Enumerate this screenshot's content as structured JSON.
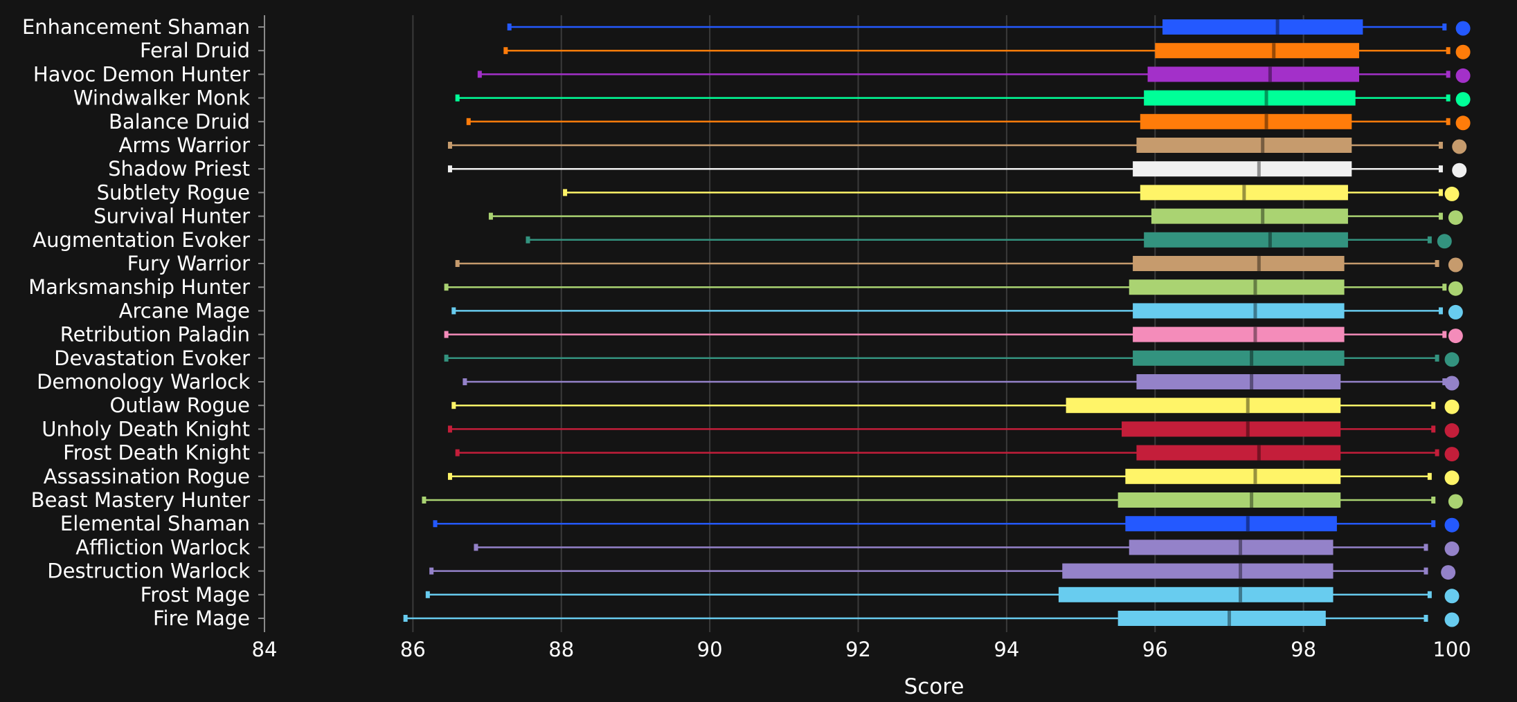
{
  "chart_data": {
    "type": "box",
    "title": "",
    "xlabel": "Score",
    "ylabel": "",
    "xlim": [
      84,
      100
    ],
    "x_ticks": [
      "84",
      "86",
      "88",
      "90",
      "92",
      "94",
      "96",
      "98",
      "100"
    ],
    "grid": "vertical",
    "legend": "none",
    "series": [
      {
        "name": "Enhancement Shaman",
        "color": "#2459FF",
        "min": 87.3,
        "q1": 96.1,
        "median": 97.65,
        "q3": 98.8,
        "max": 99.9,
        "dot": 100.15
      },
      {
        "name": "Feral Druid",
        "color": "#FF7C0A",
        "min": 87.25,
        "q1": 96.0,
        "median": 97.6,
        "q3": 98.75,
        "max": 99.95,
        "dot": 100.15
      },
      {
        "name": "Havoc Demon Hunter",
        "color": "#A330C9",
        "min": 86.9,
        "q1": 95.9,
        "median": 97.55,
        "q3": 98.75,
        "max": 99.95,
        "dot": 100.15
      },
      {
        "name": "Windwalker Monk",
        "color": "#00FF98",
        "min": 86.6,
        "q1": 95.85,
        "median": 97.5,
        "q3": 98.7,
        "max": 99.95,
        "dot": 100.15
      },
      {
        "name": "Balance Druid",
        "color": "#FF7C0A",
        "min": 86.75,
        "q1": 95.8,
        "median": 97.5,
        "q3": 98.65,
        "max": 99.95,
        "dot": 100.15
      },
      {
        "name": "Arms Warrior",
        "color": "#C69B6D",
        "min": 86.5,
        "q1": 95.75,
        "median": 97.45,
        "q3": 98.65,
        "max": 99.85,
        "dot": 100.1
      },
      {
        "name": "Shadow Priest",
        "color": "#F0F0F0",
        "min": 86.5,
        "q1": 95.7,
        "median": 97.4,
        "q3": 98.65,
        "max": 99.85,
        "dot": 100.1
      },
      {
        "name": "Subtlety Rogue",
        "color": "#FFF468",
        "min": 88.05,
        "q1": 95.8,
        "median": 97.2,
        "q3": 98.6,
        "max": 99.85,
        "dot": 100.0
      },
      {
        "name": "Survival Hunter",
        "color": "#AAD372",
        "min": 87.05,
        "q1": 95.95,
        "median": 97.45,
        "q3": 98.6,
        "max": 99.85,
        "dot": 100.05
      },
      {
        "name": "Augmentation Evoker",
        "color": "#33937F",
        "min": 87.55,
        "q1": 95.85,
        "median": 97.55,
        "q3": 98.6,
        "max": 99.7,
        "dot": 99.9
      },
      {
        "name": "Fury Warrior",
        "color": "#C69B6D",
        "min": 86.6,
        "q1": 95.7,
        "median": 97.4,
        "q3": 98.55,
        "max": 99.8,
        "dot": 100.05
      },
      {
        "name": "Marksmanship Hunter",
        "color": "#AAD372",
        "min": 86.45,
        "q1": 95.65,
        "median": 97.35,
        "q3": 98.55,
        "max": 99.9,
        "dot": 100.05
      },
      {
        "name": "Arcane Mage",
        "color": "#68CCEF",
        "min": 86.55,
        "q1": 95.7,
        "median": 97.35,
        "q3": 98.55,
        "max": 99.85,
        "dot": 100.05
      },
      {
        "name": "Retribution Paladin",
        "color": "#F48CBA",
        "min": 86.45,
        "q1": 95.7,
        "median": 97.35,
        "q3": 98.55,
        "max": 99.9,
        "dot": 100.05
      },
      {
        "name": "Devastation Evoker",
        "color": "#33937F",
        "min": 86.45,
        "q1": 95.7,
        "median": 97.3,
        "q3": 98.55,
        "max": 99.8,
        "dot": 100.0
      },
      {
        "name": "Demonology Warlock",
        "color": "#9482C9",
        "min": 86.7,
        "q1": 95.75,
        "median": 97.3,
        "q3": 98.5,
        "max": 99.9,
        "dot": 100.0
      },
      {
        "name": "Outlaw Rogue",
        "color": "#FFF468",
        "min": 86.55,
        "q1": 94.8,
        "median": 97.25,
        "q3": 98.5,
        "max": 99.75,
        "dot": 100.0
      },
      {
        "name": "Unholy Death Knight",
        "color": "#C41E3A",
        "min": 86.5,
        "q1": 95.55,
        "median": 97.25,
        "q3": 98.5,
        "max": 99.75,
        "dot": 100.0
      },
      {
        "name": "Frost Death Knight",
        "color": "#C41E3A",
        "min": 86.6,
        "q1": 95.75,
        "median": 97.4,
        "q3": 98.5,
        "max": 99.8,
        "dot": 100.0
      },
      {
        "name": "Assassination Rogue",
        "color": "#FFF468",
        "min": 86.5,
        "q1": 95.6,
        "median": 97.35,
        "q3": 98.5,
        "max": 99.7,
        "dot": 100.0
      },
      {
        "name": "Beast Mastery Hunter",
        "color": "#AAD372",
        "min": 86.15,
        "q1": 95.5,
        "median": 97.3,
        "q3": 98.5,
        "max": 99.75,
        "dot": 100.05
      },
      {
        "name": "Elemental Shaman",
        "color": "#2459FF",
        "min": 86.3,
        "q1": 95.6,
        "median": 97.25,
        "q3": 98.45,
        "max": 99.75,
        "dot": 100.0
      },
      {
        "name": "Affliction Warlock",
        "color": "#9482C9",
        "min": 86.85,
        "q1": 95.65,
        "median": 97.15,
        "q3": 98.4,
        "max": 99.65,
        "dot": 100.0
      },
      {
        "name": "Destruction Warlock",
        "color": "#9482C9",
        "min": 86.25,
        "q1": 94.75,
        "median": 97.15,
        "q3": 98.4,
        "max": 99.65,
        "dot": 99.95
      },
      {
        "name": "Frost Mage",
        "color": "#68CCEF",
        "min": 86.2,
        "q1": 94.7,
        "median": 97.15,
        "q3": 98.4,
        "max": 99.7,
        "dot": 100.0
      },
      {
        "name": "Fire Mage",
        "color": "#68CCEF",
        "min": 85.9,
        "q1": 95.5,
        "median": 97.0,
        "q3": 98.3,
        "max": 99.65,
        "dot": 100.0
      }
    ]
  }
}
